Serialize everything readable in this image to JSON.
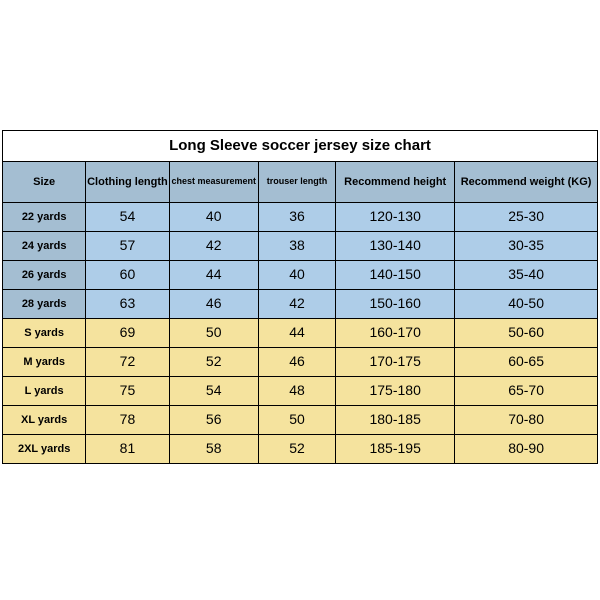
{
  "title": "Long Sleeve soccer jersey size chart",
  "columns": [
    {
      "label": "Size",
      "width": "14%",
      "small": false
    },
    {
      "label": "Clothing length",
      "width": "14%",
      "small": false
    },
    {
      "label": "chest measurement",
      "width": "15%",
      "small": true
    },
    {
      "label": "trouser length",
      "width": "13%",
      "small": true
    },
    {
      "label": "Recommend height",
      "width": "20%",
      "small": false
    },
    {
      "label": "Recommend weight (KG)",
      "width": "24%",
      "small": false
    }
  ],
  "rows": [
    {
      "band": "blue",
      "cells": [
        "22 yards",
        "54",
        "40",
        "36",
        "120-130",
        "25-30"
      ]
    },
    {
      "band": "blue",
      "cells": [
        "24 yards",
        "57",
        "42",
        "38",
        "130-140",
        "30-35"
      ]
    },
    {
      "band": "blue",
      "cells": [
        "26 yards",
        "60",
        "44",
        "40",
        "140-150",
        "35-40"
      ]
    },
    {
      "band": "blue",
      "cells": [
        "28 yards",
        "63",
        "46",
        "42",
        "150-160",
        "40-50"
      ]
    },
    {
      "band": "yellow",
      "cells": [
        "S yards",
        "69",
        "50",
        "44",
        "160-170",
        "50-60"
      ]
    },
    {
      "band": "yellow",
      "cells": [
        "M yards",
        "72",
        "52",
        "46",
        "170-175",
        "60-65"
      ]
    },
    {
      "band": "yellow",
      "cells": [
        "L yards",
        "75",
        "54",
        "48",
        "175-180",
        "65-70"
      ]
    },
    {
      "band": "yellow",
      "cells": [
        "XL yards",
        "78",
        "56",
        "50",
        "180-185",
        "70-80"
      ]
    },
    {
      "band": "yellow",
      "cells": [
        "2XL yards",
        "81",
        "58",
        "52",
        "185-195",
        "80-90"
      ]
    }
  ],
  "colors": {
    "header_bg": "#a4bed2",
    "blue_row": "#aecde8",
    "yellow_row": "#f5e39e",
    "border": "#000000",
    "page_bg": "#ffffff"
  }
}
